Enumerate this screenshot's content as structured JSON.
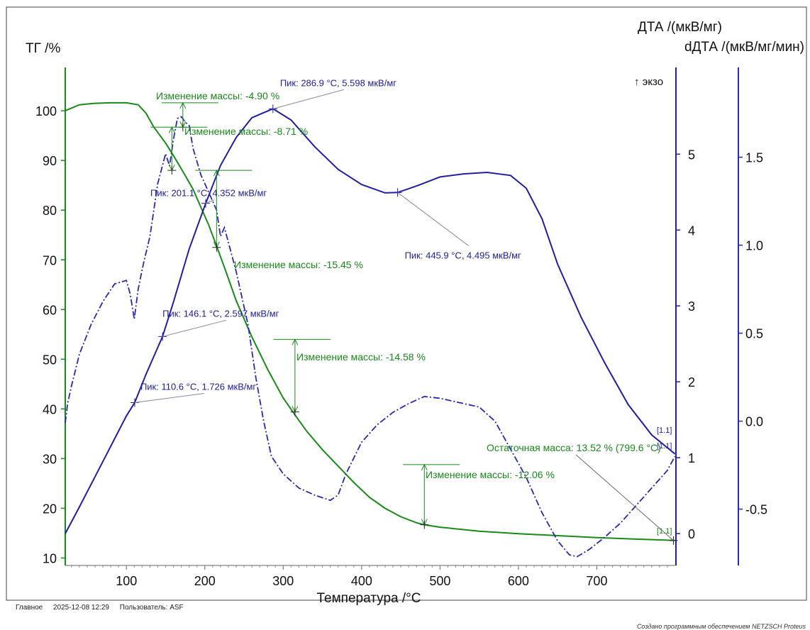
{
  "chart_data": {
    "type": "line",
    "xlabel": "Температура /°C",
    "ylabel_left": "ТГ /%",
    "ylabel_right_1": "ДТА /(мкВ/мг)",
    "ylabel_right_2": "dДТА /(мкВ/мг/мин)",
    "exo_label": "↑ экзо",
    "xlim": [
      22,
      800
    ],
    "ylim_tg": [
      8.5,
      107.3
    ],
    "ylim_dta": [
      -0.42,
      6.05
    ],
    "ylim_ddta": [
      -0.82,
      1.97
    ],
    "x_ticks": [
      "100",
      "200",
      "300",
      "400",
      "500",
      "600",
      "700"
    ],
    "y_ticks_tg": [
      "10",
      "20",
      "30",
      "40",
      "50",
      "60",
      "70",
      "80",
      "90",
      "100"
    ],
    "y_ticks_dta": [
      "0",
      "1",
      "2",
      "3",
      "4",
      "5"
    ],
    "y_ticks_ddta": [
      "-0.5",
      "0.0",
      "0.5",
      "1.0",
      "1.5"
    ],
    "colors": {
      "tg": "#1a8a1a",
      "dta": "#2020a0",
      "ddta": "#2a2ab0",
      "frame": "#777777"
    },
    "series": [
      {
        "key": "tg",
        "axis": "left",
        "x": [
          22,
          40,
          60,
          80,
          100,
          115,
          125,
          135,
          150,
          160,
          172,
          185,
          195,
          205,
          215,
          225,
          240,
          260,
          280,
          300,
          315,
          330,
          350,
          370,
          390,
          410,
          430,
          450,
          470,
          480,
          500,
          550,
          600,
          650,
          700,
          750,
          799.6
        ],
        "y": [
          100,
          101.2,
          101.5,
          101.6,
          101.6,
          101.2,
          99.5,
          96.7,
          93.5,
          91.0,
          87.8,
          84.2,
          80.6,
          77.0,
          72.8,
          68.5,
          61.8,
          54.5,
          48.0,
          42.2,
          38.8,
          35.5,
          31.8,
          28.5,
          25.2,
          22.2,
          20.0,
          18.3,
          17.1,
          16.7,
          16.2,
          15.4,
          14.9,
          14.5,
          14.1,
          13.8,
          13.52
        ]
      },
      {
        "key": "dta",
        "axis": "right1",
        "x": [
          22,
          40,
          60,
          80,
          100,
          110.6,
          125,
          146.1,
          160,
          180,
          201.1,
          220,
          240,
          260,
          286.9,
          310,
          340,
          370,
          400,
          430,
          445.9,
          470,
          500,
          530,
          560,
          590,
          610,
          630,
          650,
          680,
          710,
          740,
          770,
          799.6
        ],
        "y": [
          0.0,
          0.35,
          0.75,
          1.15,
          1.55,
          1.726,
          2.1,
          2.597,
          3.05,
          3.75,
          4.352,
          4.85,
          5.22,
          5.48,
          5.598,
          5.45,
          5.1,
          4.8,
          4.6,
          4.49,
          4.495,
          4.58,
          4.7,
          4.74,
          4.76,
          4.72,
          4.55,
          4.15,
          3.55,
          2.85,
          2.25,
          1.7,
          1.3,
          1.05
        ]
      },
      {
        "key": "ddta",
        "axis": "right2",
        "x": [
          22,
          25,
          30,
          40,
          55,
          70,
          85,
          100,
          105,
          110,
          115,
          122,
          130,
          140,
          150,
          155,
          160,
          165,
          170,
          175,
          180,
          185,
          195,
          205,
          215,
          220,
          225,
          240,
          255,
          265,
          275,
          285,
          300,
          320,
          340,
          360,
          370,
          380,
          400,
          420,
          440,
          460,
          480,
          500,
          530,
          550,
          570,
          590,
          610,
          630,
          650,
          665,
          675,
          690,
          710,
          730,
          750,
          770,
          790,
          799.6
        ],
        "y": [
          -0.01,
          0.1,
          0.2,
          0.38,
          0.55,
          0.68,
          0.78,
          0.8,
          0.72,
          0.58,
          0.75,
          0.9,
          1.05,
          1.35,
          1.52,
          1.45,
          1.6,
          1.72,
          1.73,
          1.7,
          1.68,
          1.55,
          1.4,
          1.3,
          1.2,
          1.05,
          1.1,
          0.85,
          0.55,
          0.25,
          0.0,
          -0.2,
          -0.3,
          -0.38,
          -0.42,
          -0.45,
          -0.42,
          -0.3,
          -0.12,
          -0.02,
          0.05,
          0.1,
          0.14,
          0.13,
          0.1,
          0.08,
          0.0,
          -0.16,
          -0.32,
          -0.52,
          -0.68,
          -0.76,
          -0.77,
          -0.73,
          -0.66,
          -0.58,
          -0.48,
          -0.38,
          -0.28,
          -0.2
        ]
      }
    ],
    "dta_peaks": [
      {
        "label": "Пик: 110.6 °C, 1.726 мкВ/мг",
        "x": 110.6,
        "y": 1.726
      },
      {
        "label": "Пик: 146.1 °C, 2.597 мкВ/мг",
        "x": 146.1,
        "y": 2.597
      },
      {
        "label": "Пик: 201.1 °C, 4.352 мкВ/мг",
        "x": 201.1,
        "y": 4.352
      },
      {
        "label": "Пик: 286.9 °C, 5.598 мкВ/мг",
        "x": 286.9,
        "y": 5.598
      },
      {
        "label": "Пик: 445.9 °C, 4.495 мкВ/мг",
        "x": 445.9,
        "y": 4.495
      }
    ],
    "mass_changes": [
      {
        "label": "Изменение массы: -4.90 %",
        "x": 172,
        "from": 101.6,
        "to": 96.7
      },
      {
        "label": "Изменение массы: -8.71 %",
        "x": 158,
        "from": 96.7,
        "to": 88.0
      },
      {
        "label": "Изменение массы: -15.45 %",
        "x": 215,
        "from": 88.0,
        "to": 72.5
      },
      {
        "label": "Изменение массы: -14.58 %",
        "x": 315,
        "from": 54.0,
        "to": 39.4
      },
      {
        "label": "Изменение массы: -12.06 %",
        "x": 480,
        "from": 28.8,
        "to": 16.7
      }
    ],
    "residual_mass": {
      "label": "Остаточная масса: 13.52 % (799.6 °C)",
      "x": 799.6,
      "y": 13.52
    },
    "curve_tags": [
      "[1.1]",
      "[1.1]",
      "[1.1]"
    ]
  },
  "footer": {
    "segment": "Главное",
    "datetime": "2025-12-08 12:29",
    "user": "Пользователь: ASF",
    "credit": "Создано программным обеспечением NETZSCH Proteus"
  }
}
